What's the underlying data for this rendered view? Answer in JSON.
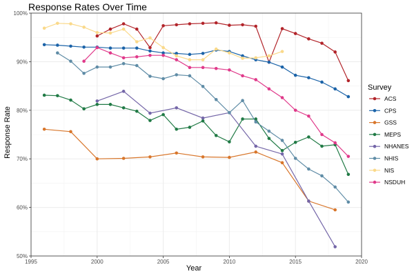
{
  "chart_data": {
    "type": "line",
    "title": "Response Rates Over Time",
    "xlabel": "Year",
    "ylabel": "Response Rate",
    "xlim": [
      1995,
      2020
    ],
    "ylim": [
      50,
      100
    ],
    "x_ticks": [
      1995,
      2000,
      2005,
      2010,
      2015,
      2020
    ],
    "y_ticks": [
      50,
      60,
      70,
      80,
      90,
      100
    ],
    "y_tick_labels": [
      "50%",
      "60%",
      "70%",
      "80%",
      "90%",
      "100%"
    ],
    "grid": true,
    "legend_title": "Survey",
    "legend_position": "right",
    "series": [
      {
        "name": "ACS",
        "color": "#B2242A",
        "x": [
          2000,
          2001,
          2002,
          2003,
          2004,
          2005,
          2006,
          2007,
          2008,
          2009,
          2010,
          2011,
          2012,
          2013,
          2014,
          2015,
          2016,
          2017,
          2018,
          2019
        ],
        "y": [
          95.3,
          96.7,
          97.8,
          96.7,
          92.9,
          97.4,
          97.6,
          97.8,
          97.9,
          98.0,
          97.5,
          97.6,
          97.3,
          89.9,
          96.8,
          95.8,
          94.7,
          93.8,
          92.0,
          86.1
        ]
      },
      {
        "name": "CPS",
        "color": "#1B63A8",
        "x": [
          1996,
          1997,
          1998,
          1999,
          2000,
          2001,
          2002,
          2003,
          2004,
          2005,
          2006,
          2007,
          2008,
          2009,
          2010,
          2011,
          2012,
          2013,
          2014,
          2015,
          2016,
          2017,
          2018,
          2019
        ],
        "y": [
          93.5,
          93.4,
          93.2,
          93.0,
          93.0,
          92.8,
          92.8,
          92.8,
          92.2,
          91.8,
          91.7,
          91.5,
          91.7,
          92.4,
          92.1,
          91.2,
          90.4,
          89.9,
          88.9,
          87.2,
          86.7,
          85.8,
          84.4,
          82.8
        ]
      },
      {
        "name": "GSS",
        "color": "#D8762B",
        "x": [
          1996,
          1998,
          2000,
          2002,
          2004,
          2006,
          2008,
          2010,
          2012,
          2014,
          2016,
          2018
        ],
        "y": [
          76.1,
          75.6,
          70.0,
          70.1,
          70.4,
          71.2,
          70.4,
          70.3,
          71.4,
          69.2,
          61.3,
          59.5
        ]
      },
      {
        "name": "MEPS",
        "color": "#207A45",
        "x": [
          1996,
          1997,
          1998,
          1999,
          2000,
          2001,
          2002,
          2003,
          2004,
          2005,
          2006,
          2007,
          2008,
          2009,
          2010,
          2011,
          2012,
          2013,
          2014,
          2015,
          2016,
          2017,
          2018,
          2019
        ],
        "y": [
          83.1,
          83.0,
          82.1,
          80.3,
          81.2,
          81.2,
          80.5,
          79.8,
          77.9,
          79.1,
          76.1,
          76.5,
          77.8,
          74.8,
          73.5,
          78.2,
          78.2,
          74.2,
          71.7,
          73.4,
          74.5,
          72.6,
          72.9,
          66.8
        ]
      },
      {
        "name": "NHANES",
        "color": "#7466A8",
        "x": [
          2000,
          2002,
          2004,
          2006,
          2008,
          2010,
          2012,
          2014,
          2016,
          2018
        ],
        "y": [
          81.9,
          83.9,
          79.4,
          80.5,
          78.4,
          79.5,
          72.6,
          71.0,
          61.3,
          51.9
        ]
      },
      {
        "name": "NHIS",
        "color": "#5F8CA6",
        "x": [
          1997,
          1998,
          1999,
          2000,
          2001,
          2002,
          2003,
          2004,
          2005,
          2006,
          2007,
          2008,
          2009,
          2010,
          2011,
          2012,
          2013,
          2014,
          2015,
          2016,
          2017,
          2018,
          2019
        ],
        "y": [
          91.8,
          90.1,
          87.6,
          88.9,
          88.9,
          89.6,
          89.2,
          87.0,
          86.5,
          87.3,
          87.1,
          84.9,
          82.2,
          79.5,
          82.0,
          77.6,
          75.7,
          73.8,
          70.1,
          67.9,
          66.5,
          64.2,
          61.1
        ]
      },
      {
        "name": "NIS",
        "color": "#FAD98A",
        "x": [
          1996,
          1997,
          1998,
          1999,
          2000,
          2001,
          2002,
          2003,
          2004,
          2005,
          2006,
          2007,
          2008,
          2009,
          2010,
          2011,
          2012,
          2013,
          2014
        ],
        "y": [
          96.9,
          97.9,
          97.8,
          97.1,
          96.0,
          95.9,
          96.7,
          94.1,
          94.9,
          92.9,
          91.2,
          90.4,
          90.4,
          92.6,
          91.8,
          90.7,
          90.8,
          91.2,
          92.1
        ]
      },
      {
        "name": "NSDUH",
        "color": "#E0398A",
        "x": [
          1999,
          2000,
          2001,
          2002,
          2003,
          2004,
          2005,
          2006,
          2007,
          2008,
          2009,
          2010,
          2011,
          2012,
          2013,
          2014,
          2015,
          2016,
          2017,
          2018,
          2019
        ],
        "y": [
          90.1,
          92.9,
          91.8,
          90.8,
          91.0,
          91.3,
          91.3,
          90.4,
          88.8,
          88.8,
          88.6,
          88.3,
          87.1,
          86.3,
          84.4,
          82.6,
          80.0,
          78.8,
          75.0,
          73.3,
          70.5
        ]
      }
    ]
  }
}
